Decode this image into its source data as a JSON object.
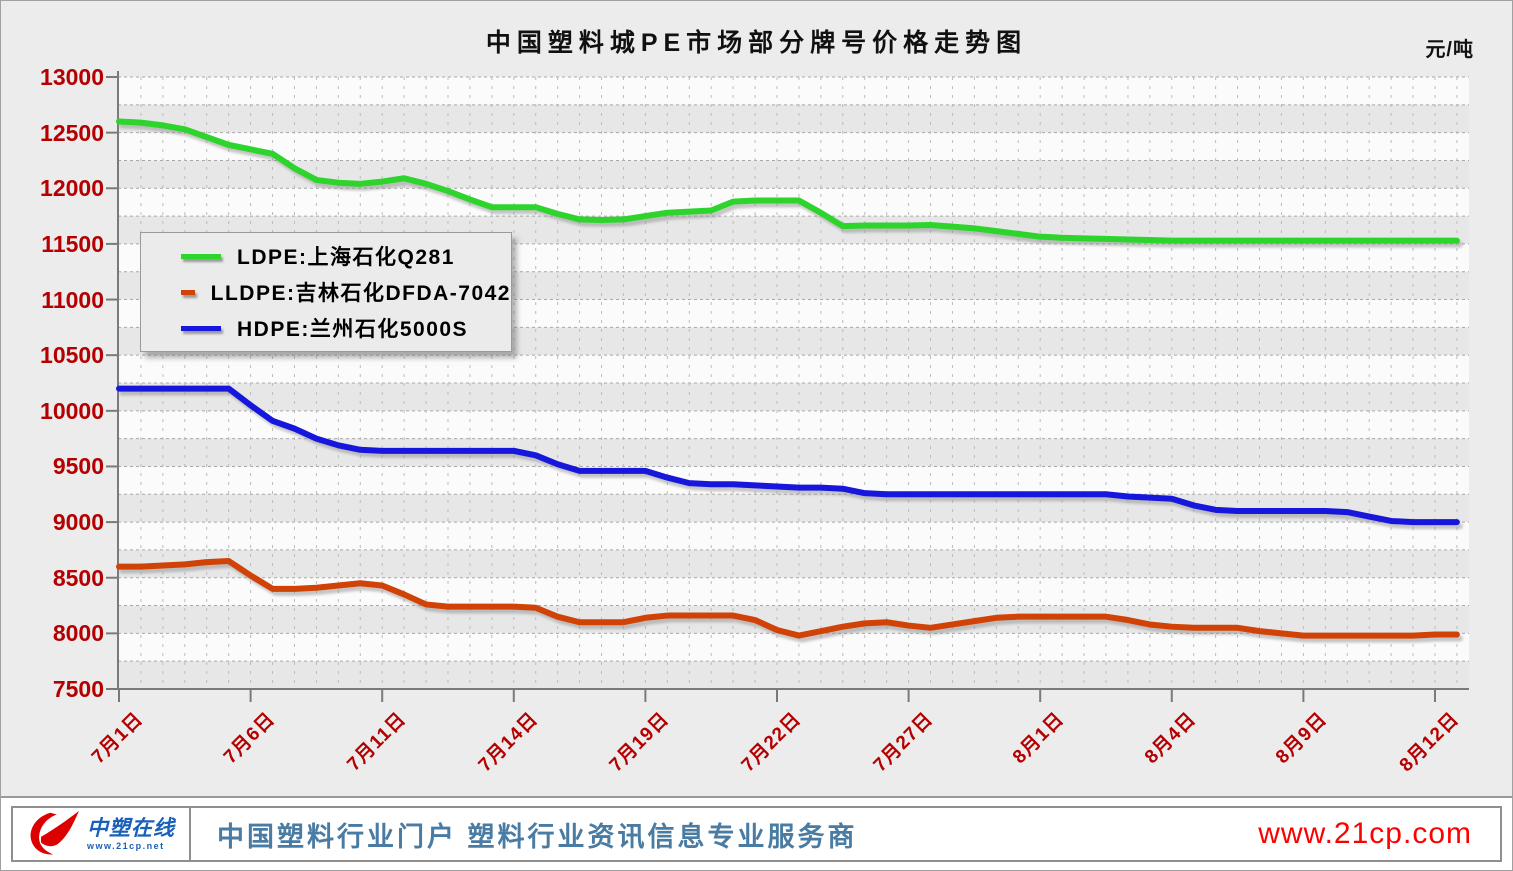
{
  "chart_data": {
    "type": "line",
    "title": "中国塑料城PE市场部分牌号价格走势图",
    "unit": "元/吨",
    "ylabel": "",
    "xlabel": "",
    "ylim": [
      7500,
      13000
    ],
    "y_ticks": [
      7500,
      8000,
      8500,
      9000,
      9500,
      10000,
      10500,
      11000,
      11500,
      12000,
      12500,
      13000
    ],
    "y_minor_step": 250,
    "grid": "dashed-minor",
    "legend_position": "upper-left-inside",
    "x_tick_labels": [
      "7月1日",
      "7月6日",
      "7月11日",
      "7月14日",
      "7月19日",
      "7月22日",
      "7月27日",
      "8月1日",
      "8月4日",
      "8月9日",
      "8月12日"
    ],
    "x_tick_indices": [
      0,
      6,
      12,
      18,
      24,
      30,
      36,
      42,
      48,
      54,
      60
    ],
    "n_points": 61,
    "series": [
      {
        "name": "LDPE:上海石化Q281",
        "color": "#2cd42c",
        "values": [
          12600,
          12590,
          12565,
          12530,
          12460,
          12390,
          12350,
          12310,
          12180,
          12075,
          12050,
          12040,
          12060,
          12090,
          12040,
          11975,
          11900,
          11830,
          11830,
          11830,
          11770,
          11720,
          11715,
          11720,
          11750,
          11780,
          11790,
          11800,
          11880,
          11890,
          11890,
          11890,
          11780,
          11660,
          11665,
          11665,
          11665,
          11670,
          11655,
          11640,
          11615,
          11590,
          11565,
          11555,
          11550,
          11545,
          11540,
          11535,
          11530,
          11530,
          11530,
          11530,
          11530,
          11530,
          11530,
          11530,
          11530,
          11530,
          11530,
          11530,
          11530
        ]
      },
      {
        "name": "LLDPE:吉林石化DFDA-7042",
        "color": "#d04205",
        "values": [
          8600,
          8600,
          8610,
          8620,
          8640,
          8650,
          8520,
          8400,
          8400,
          8410,
          8430,
          8450,
          8430,
          8350,
          8260,
          8240,
          8240,
          8240,
          8240,
          8230,
          8150,
          8100,
          8100,
          8100,
          8140,
          8160,
          8160,
          8160,
          8160,
          8120,
          8030,
          7980,
          8020,
          8060,
          8090,
          8100,
          8070,
          8050,
          8080,
          8110,
          8140,
          8150,
          8150,
          8150,
          8150,
          8150,
          8120,
          8080,
          8060,
          8050,
          8050,
          8050,
          8020,
          8000,
          7980,
          7980,
          7980,
          7980,
          7980,
          7980,
          7990
        ]
      },
      {
        "name": "HDPE:兰州石化5000S",
        "color": "#1616dd",
        "values": [
          10200,
          10200,
          10200,
          10200,
          10200,
          10200,
          10050,
          9910,
          9840,
          9750,
          9690,
          9650,
          9640,
          9640,
          9640,
          9640,
          9640,
          9640,
          9640,
          9600,
          9520,
          9460,
          9460,
          9460,
          9460,
          9400,
          9350,
          9340,
          9340,
          9330,
          9320,
          9310,
          9310,
          9300,
          9260,
          9250,
          9250,
          9250,
          9250,
          9250,
          9250,
          9250,
          9250,
          9250,
          9250,
          9250,
          9230,
          9220,
          9210,
          9150,
          9110,
          9100,
          9100,
          9100,
          9100,
          9100,
          9090,
          9050,
          9010,
          9000,
          9000
        ]
      }
    ]
  },
  "footer": {
    "logo_text": "中塑在线",
    "logo_url": "www.21cp.net",
    "slogan": "中国塑料行业门户  塑料行业资讯信息专业服务商",
    "site_url": "www.21cp.com"
  }
}
